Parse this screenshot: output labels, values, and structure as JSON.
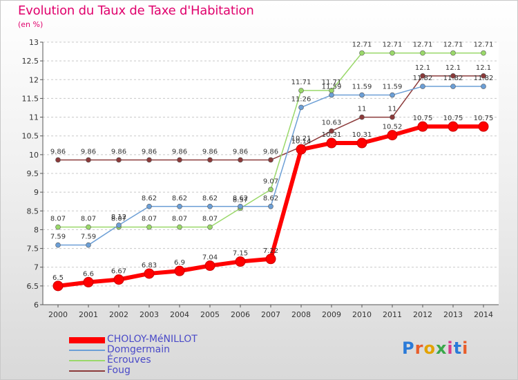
{
  "chart": {
    "title": "Evolution du Taux de Taxe d'Habitation",
    "unit_label": "(en %)",
    "logo_text": "Proxiti"
  },
  "chart_data": {
    "type": "line",
    "title": "Evolution du Taux de Taxe d'Habitation",
    "ylabel": "(en %)",
    "xlabel": "",
    "x": [
      "2000",
      "2001",
      "2002",
      "2003",
      "2004",
      "2005",
      "2006",
      "2007",
      "2008",
      "2009",
      "2010",
      "2011",
      "2012",
      "2013",
      "2014"
    ],
    "ylim": [
      6,
      13
    ],
    "yticks": [
      "6",
      "6.5",
      "7",
      "7.5",
      "8",
      "8.5",
      "9",
      "9.5",
      "10",
      "10.5",
      "11",
      "11.5",
      "12",
      "12.5",
      "13"
    ],
    "grid": "horizontal dashed",
    "legend_position": "bottom-left",
    "series": [
      {
        "name": "CHOLOY-MéNILLOT",
        "color": "#ff0000",
        "values": [
          6.5,
          6.6,
          6.67,
          6.83,
          6.9,
          7.04,
          7.15,
          7.22,
          10.14,
          10.31,
          10.31,
          10.52,
          10.75,
          10.75,
          10.75
        ],
        "labels": [
          "6.5",
          "6.6",
          "6.67",
          "6.83",
          "6.9",
          "7.04",
          "7.15",
          "7.22",
          "10.14",
          "10.31",
          "10.31",
          "10.52",
          "10.75",
          "10.75",
          "10.75"
        ]
      },
      {
        "name": "Domgermain",
        "color": "#6c9fd6",
        "values": [
          7.59,
          7.59,
          8.12,
          8.62,
          8.62,
          8.62,
          8.62,
          8.62,
          11.26,
          11.59,
          11.59,
          11.59,
          11.82,
          11.82,
          11.82
        ],
        "labels": [
          "7.59",
          "7.59",
          "8.12",
          "8.62",
          "8.62",
          "8.62",
          "8.62",
          "8.62",
          "11.26",
          "11.59",
          "11.59",
          "11.59",
          "11.82",
          "11.82",
          "11.82"
        ]
      },
      {
        "name": "Écrouves",
        "color": "#9ad86a",
        "values": [
          8.07,
          8.07,
          8.07,
          8.07,
          8.07,
          8.07,
          8.57,
          9.07,
          11.71,
          11.71,
          12.71,
          12.71,
          12.71,
          12.71,
          12.71
        ],
        "labels": [
          "8.07",
          "8.07",
          "8.07",
          "8.07",
          "8.07",
          "8.07",
          "8.57",
          "9.07",
          "11.71",
          "11.71",
          "12.71",
          "12.71",
          "12.71",
          "12.71",
          "12.71"
        ]
      },
      {
        "name": "Foug",
        "color": "#8b3a3a",
        "values": [
          9.86,
          9.86,
          9.86,
          9.86,
          9.86,
          9.86,
          9.86,
          9.86,
          10.21,
          10.63,
          11,
          11,
          12.1,
          12.1,
          12.1
        ],
        "labels": [
          "9.86",
          "9.86",
          "9.86",
          "9.86",
          "9.86",
          "9.86",
          "9.86",
          "9.86",
          "10.21",
          "10.63",
          "11",
          "11",
          "12.1",
          "12.1",
          "12.1"
        ]
      }
    ]
  }
}
